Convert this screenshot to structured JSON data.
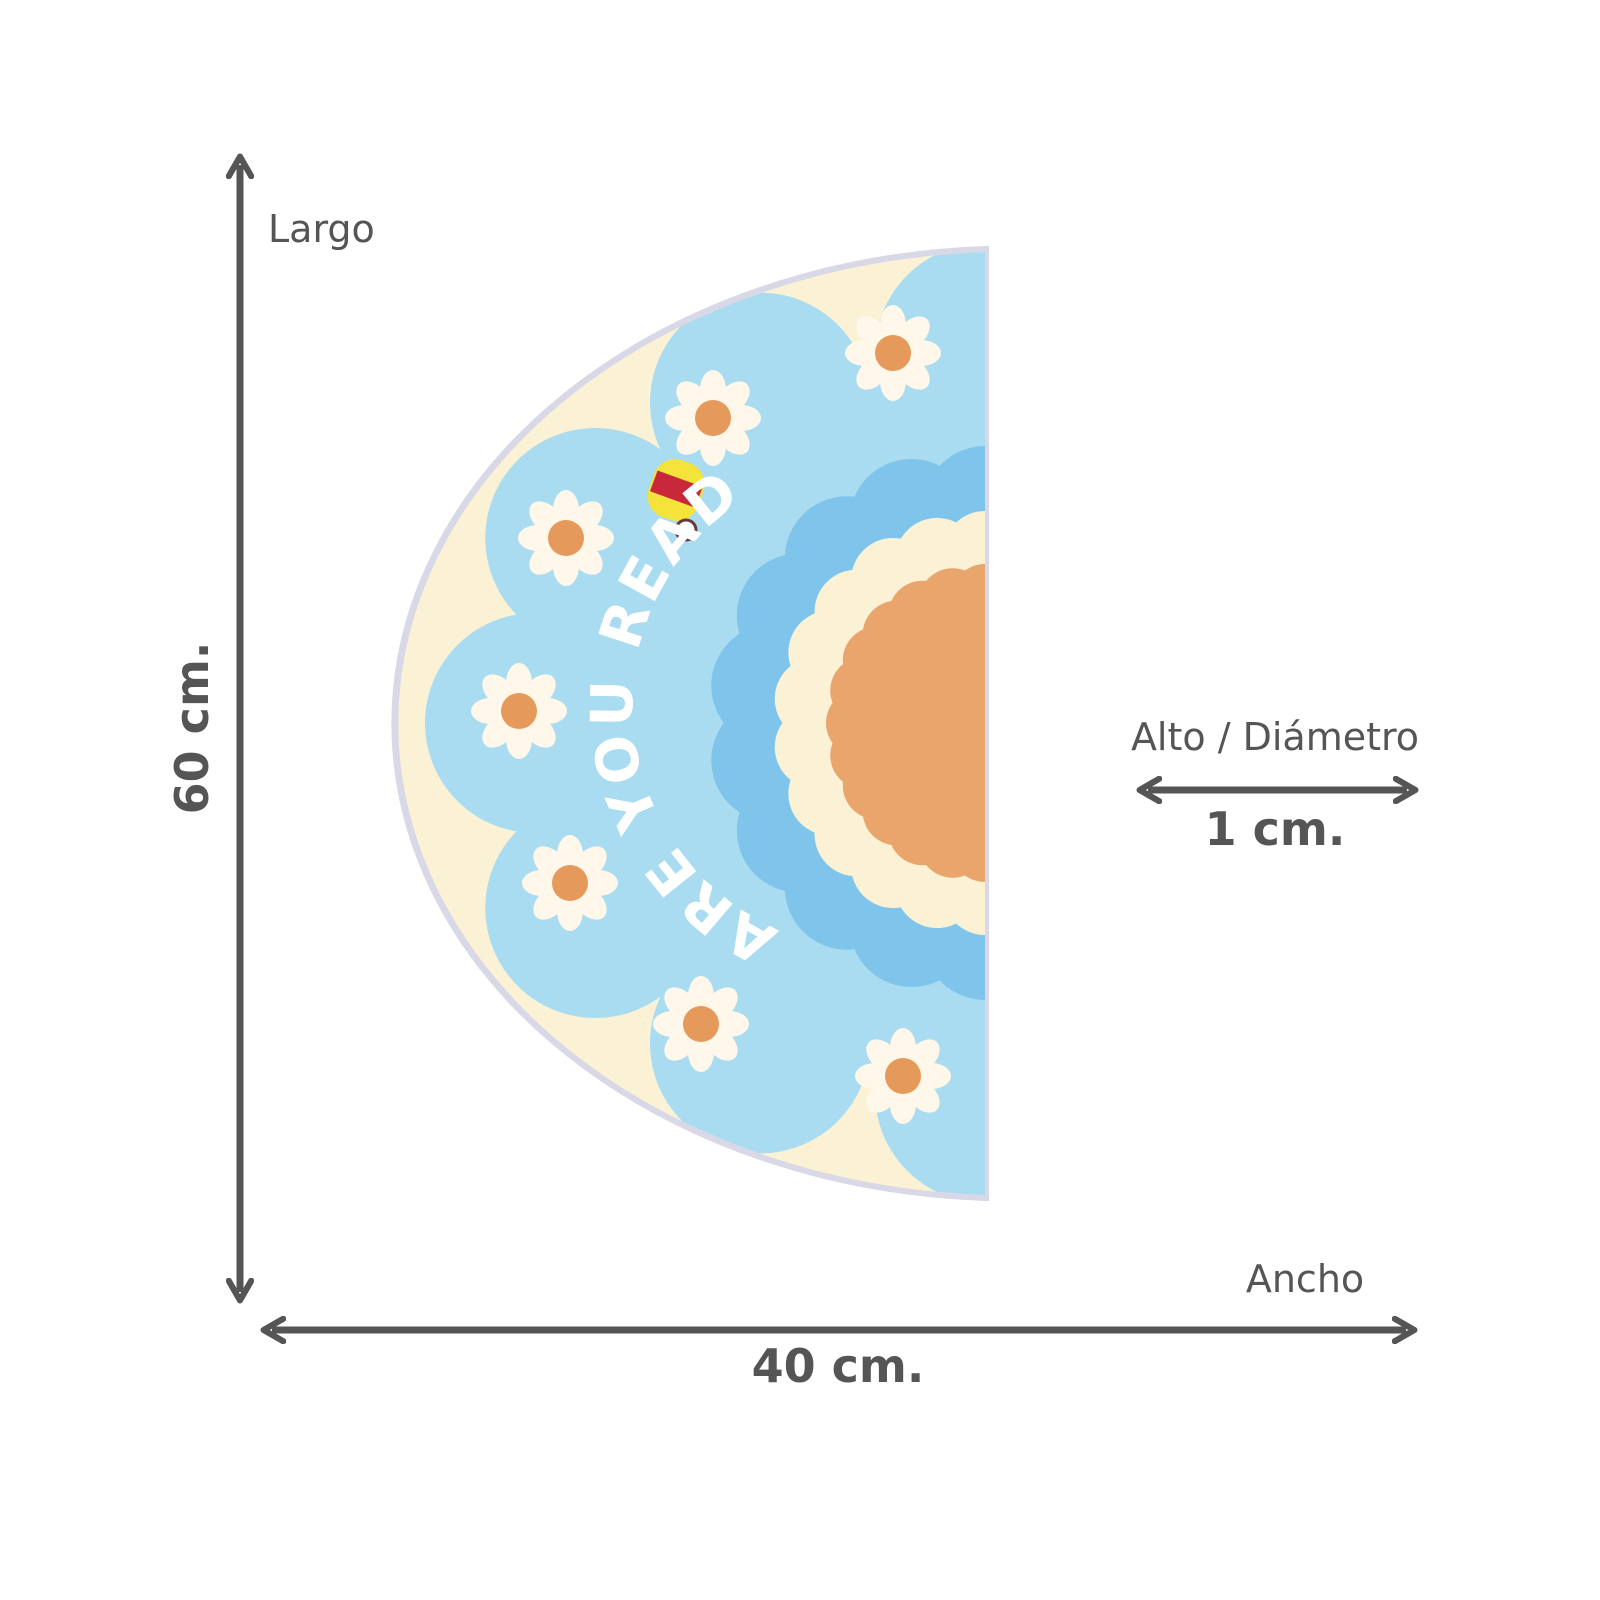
{
  "labels": {
    "length_title": "Largo",
    "length_value": "60 cm.",
    "height_title": "Alto / Diámetro",
    "height_value": "1 cm.",
    "width_title": "Ancho",
    "width_value": "40 cm."
  },
  "rug": {
    "text": "ARE YOU READY"
  }
}
